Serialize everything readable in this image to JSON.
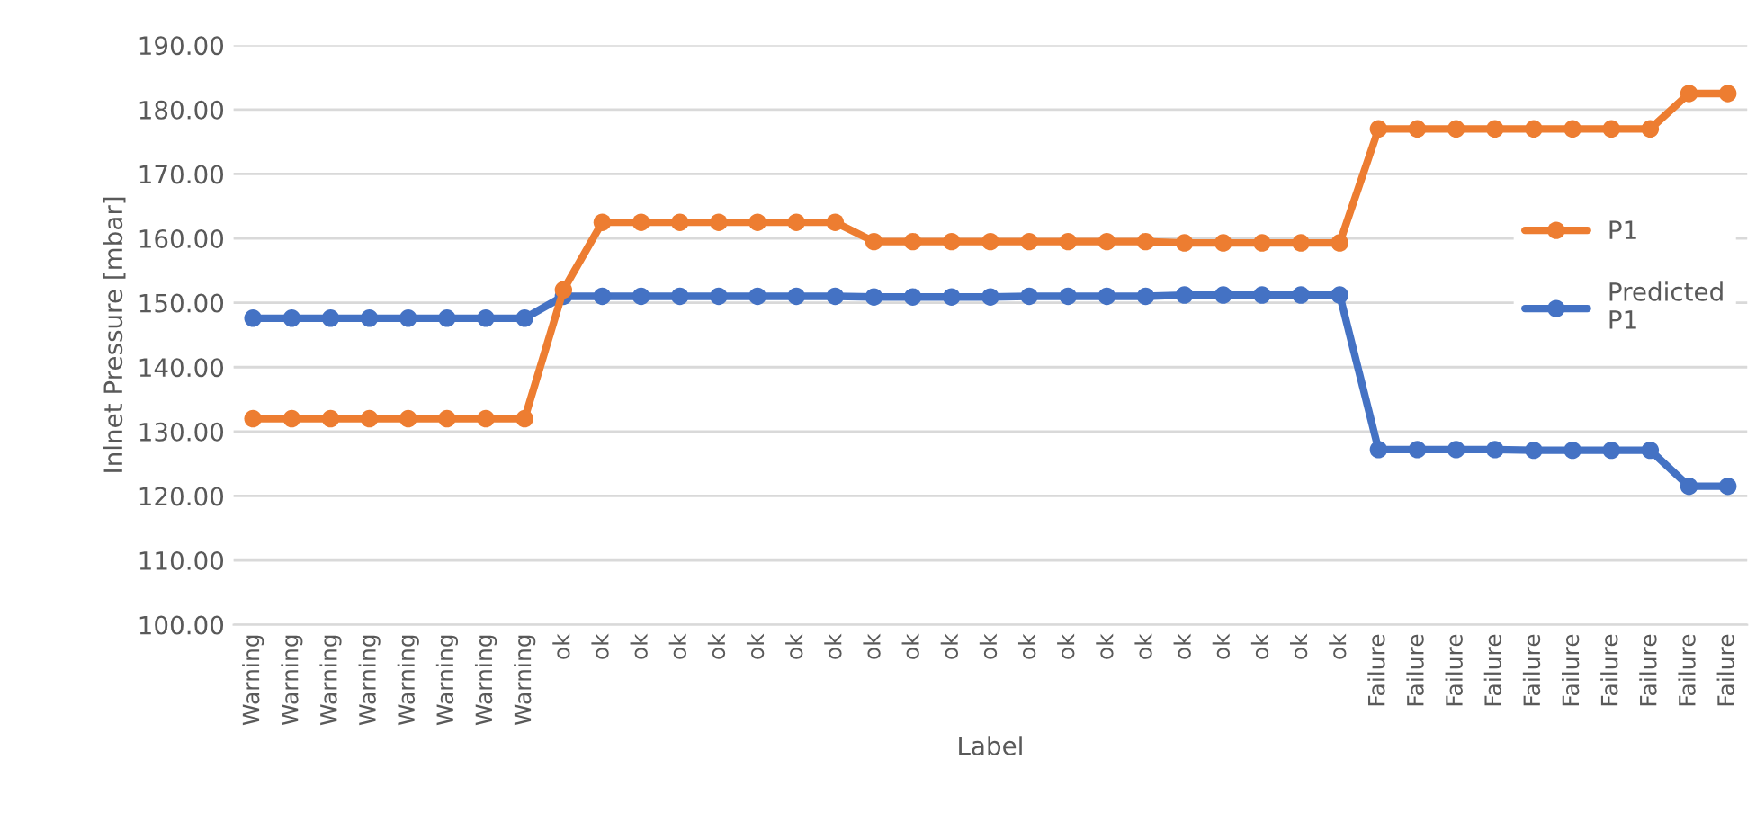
{
  "chart_data": {
    "type": "line",
    "xlabel": "Label",
    "ylabel": "Inlnet Pressure [mbar]",
    "categories": [
      "Warning",
      "Warning",
      "Warning",
      "Warning",
      "Warning",
      "Warning",
      "Warning",
      "Warning",
      "ok",
      "ok",
      "ok",
      "ok",
      "ok",
      "ok",
      "ok",
      "ok",
      "ok",
      "ok",
      "ok",
      "ok",
      "ok",
      "ok",
      "ok",
      "ok",
      "ok",
      "ok",
      "ok",
      "ok",
      "ok",
      "Failure",
      "Failure",
      "Failure",
      "Failure",
      "Failure",
      "Failure",
      "Failure",
      "Failure",
      "Failure",
      "Failure"
    ],
    "series": [
      {
        "name": "P1",
        "color": "#ed7d31",
        "values": [
          132,
          132,
          132,
          132,
          132,
          132,
          132,
          132,
          152,
          162.5,
          162.5,
          162.5,
          162.5,
          162.5,
          162.5,
          162.5,
          159.5,
          159.5,
          159.5,
          159.5,
          159.5,
          159.5,
          159.5,
          159.5,
          159.3,
          159.3,
          159.3,
          159.3,
          159.3,
          177,
          177,
          177,
          177,
          177,
          177,
          177,
          177,
          182.5,
          182.5
        ]
      },
      {
        "name": "Predicted P1",
        "color": "#4472c4",
        "values": [
          147.6,
          147.6,
          147.6,
          147.6,
          147.6,
          147.6,
          147.6,
          147.6,
          151,
          151,
          151,
          151,
          151,
          151,
          151,
          151,
          150.9,
          150.9,
          150.9,
          150.9,
          151,
          151,
          151,
          151,
          151.2,
          151.2,
          151.2,
          151.2,
          151.2,
          127.2,
          127.2,
          127.2,
          127.2,
          127.1,
          127.1,
          127.1,
          127.1,
          121.5,
          121.5
        ]
      }
    ],
    "ylim": [
      100,
      190
    ],
    "yticks": [
      {
        "value": 100,
        "label": "100.00"
      },
      {
        "value": 110,
        "label": "110.00"
      },
      {
        "value": 120,
        "label": "120.00"
      },
      {
        "value": 130,
        "label": "130.00"
      },
      {
        "value": 140,
        "label": "140.00"
      },
      {
        "value": 150,
        "label": "150.00"
      },
      {
        "value": 160,
        "label": "160.00"
      },
      {
        "value": 170,
        "label": "170.00"
      },
      {
        "value": 180,
        "label": "180.00"
      },
      {
        "value": 190,
        "label": "190.00"
      }
    ],
    "grid": "y",
    "legend": "right",
    "marker": "circle",
    "line_style": "solid"
  }
}
